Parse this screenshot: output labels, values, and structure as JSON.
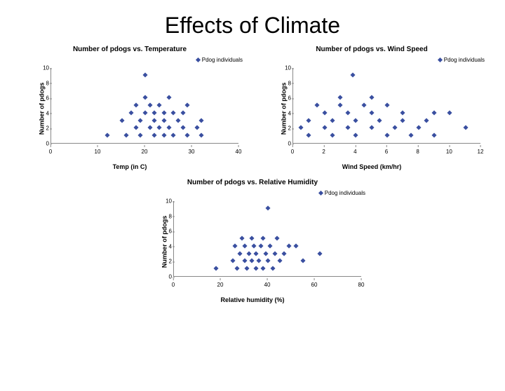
{
  "title": "Effects of Climate",
  "charts": {
    "temp": {
      "type": "scatter",
      "title": "Number of pdogs vs. Temperature",
      "legend_label": "Pdog individuals",
      "xlabel": "Temp (in C)",
      "ylabel": "Number of pdogs",
      "xlim": [
        0,
        40
      ],
      "ylim": [
        0,
        10
      ],
      "xticks": [
        0,
        10,
        20,
        30,
        40
      ],
      "yticks": [
        0,
        2,
        4,
        6,
        8,
        10
      ],
      "marker_color": "#3a4fa0",
      "background_color": "#ffffff",
      "axis_color": "#888888",
      "title_fontsize": 10,
      "label_fontsize": 9,
      "tick_fontsize": 8,
      "points": [
        [
          12,
          1
        ],
        [
          15,
          3
        ],
        [
          16,
          1
        ],
        [
          17,
          4
        ],
        [
          18,
          2
        ],
        [
          18,
          5
        ],
        [
          19,
          1
        ],
        [
          19,
          3
        ],
        [
          20,
          4
        ],
        [
          20,
          6
        ],
        [
          20,
          9
        ],
        [
          21,
          2
        ],
        [
          21,
          5
        ],
        [
          22,
          1
        ],
        [
          22,
          3
        ],
        [
          22,
          4
        ],
        [
          23,
          2
        ],
        [
          23,
          5
        ],
        [
          24,
          1
        ],
        [
          24,
          3
        ],
        [
          24,
          4
        ],
        [
          25,
          2
        ],
        [
          25,
          6
        ],
        [
          26,
          1
        ],
        [
          26,
          4
        ],
        [
          27,
          3
        ],
        [
          28,
          2
        ],
        [
          28,
          4
        ],
        [
          29,
          1
        ],
        [
          29,
          5
        ],
        [
          31,
          2
        ],
        [
          32,
          1
        ],
        [
          32,
          3
        ]
      ]
    },
    "wind": {
      "type": "scatter",
      "title": "Number of pdogs vs. Wind Speed",
      "legend_label": "Pdog individuals",
      "xlabel": "Wind Speed (km/hr)",
      "ylabel": "Number of pdogs",
      "xlim": [
        0,
        12
      ],
      "ylim": [
        0,
        10
      ],
      "xticks": [
        0,
        2,
        4,
        6,
        8,
        10,
        12
      ],
      "yticks": [
        0,
        2,
        4,
        6,
        8,
        10
      ],
      "marker_color": "#3a4fa0",
      "background_color": "#ffffff",
      "axis_color": "#888888",
      "title_fontsize": 10,
      "label_fontsize": 9,
      "tick_fontsize": 8,
      "points": [
        [
          0.5,
          2
        ],
        [
          1,
          3
        ],
        [
          1,
          1
        ],
        [
          1.5,
          5
        ],
        [
          2,
          2
        ],
        [
          2,
          4
        ],
        [
          2.5,
          1
        ],
        [
          2.5,
          3
        ],
        [
          3,
          5
        ],
        [
          3,
          6
        ],
        [
          3.5,
          2
        ],
        [
          3.5,
          4
        ],
        [
          3.8,
          9
        ],
        [
          4,
          1
        ],
        [
          4,
          3
        ],
        [
          4.5,
          5
        ],
        [
          5,
          2
        ],
        [
          5,
          4
        ],
        [
          5,
          6
        ],
        [
          5.5,
          3
        ],
        [
          6,
          1
        ],
        [
          6,
          5
        ],
        [
          6.5,
          2
        ],
        [
          7,
          4
        ],
        [
          7,
          3
        ],
        [
          7.5,
          1
        ],
        [
          8,
          2
        ],
        [
          8.5,
          3
        ],
        [
          9,
          4
        ],
        [
          9,
          1
        ],
        [
          10,
          4
        ],
        [
          11,
          2
        ]
      ]
    },
    "humidity": {
      "type": "scatter",
      "title": "Number of pdogs vs. Relative Humidity",
      "legend_label": "Pdog individuals",
      "xlabel": "Relative humidity (%)",
      "ylabel": "Number of pdogs",
      "xlim": [
        0,
        80
      ],
      "ylim": [
        0,
        10
      ],
      "xticks": [
        0,
        20,
        40,
        60,
        80
      ],
      "yticks": [
        0,
        2,
        4,
        6,
        8,
        10
      ],
      "marker_color": "#3a4fa0",
      "background_color": "#ffffff",
      "axis_color": "#888888",
      "title_fontsize": 10,
      "label_fontsize": 9,
      "tick_fontsize": 8,
      "points": [
        [
          18,
          1
        ],
        [
          25,
          2
        ],
        [
          26,
          4
        ],
        [
          27,
          1
        ],
        [
          28,
          3
        ],
        [
          29,
          5
        ],
        [
          30,
          2
        ],
        [
          30,
          4
        ],
        [
          31,
          1
        ],
        [
          32,
          3
        ],
        [
          33,
          2
        ],
        [
          33,
          5
        ],
        [
          34,
          4
        ],
        [
          35,
          1
        ],
        [
          35,
          3
        ],
        [
          36,
          2
        ],
        [
          37,
          4
        ],
        [
          38,
          1
        ],
        [
          38,
          5
        ],
        [
          39,
          3
        ],
        [
          40,
          2
        ],
        [
          40,
          9
        ],
        [
          41,
          4
        ],
        [
          42,
          1
        ],
        [
          43,
          3
        ],
        [
          44,
          5
        ],
        [
          45,
          2
        ],
        [
          47,
          3
        ],
        [
          49,
          4
        ],
        [
          52,
          4
        ],
        [
          55,
          2
        ],
        [
          62,
          3
        ]
      ]
    }
  }
}
